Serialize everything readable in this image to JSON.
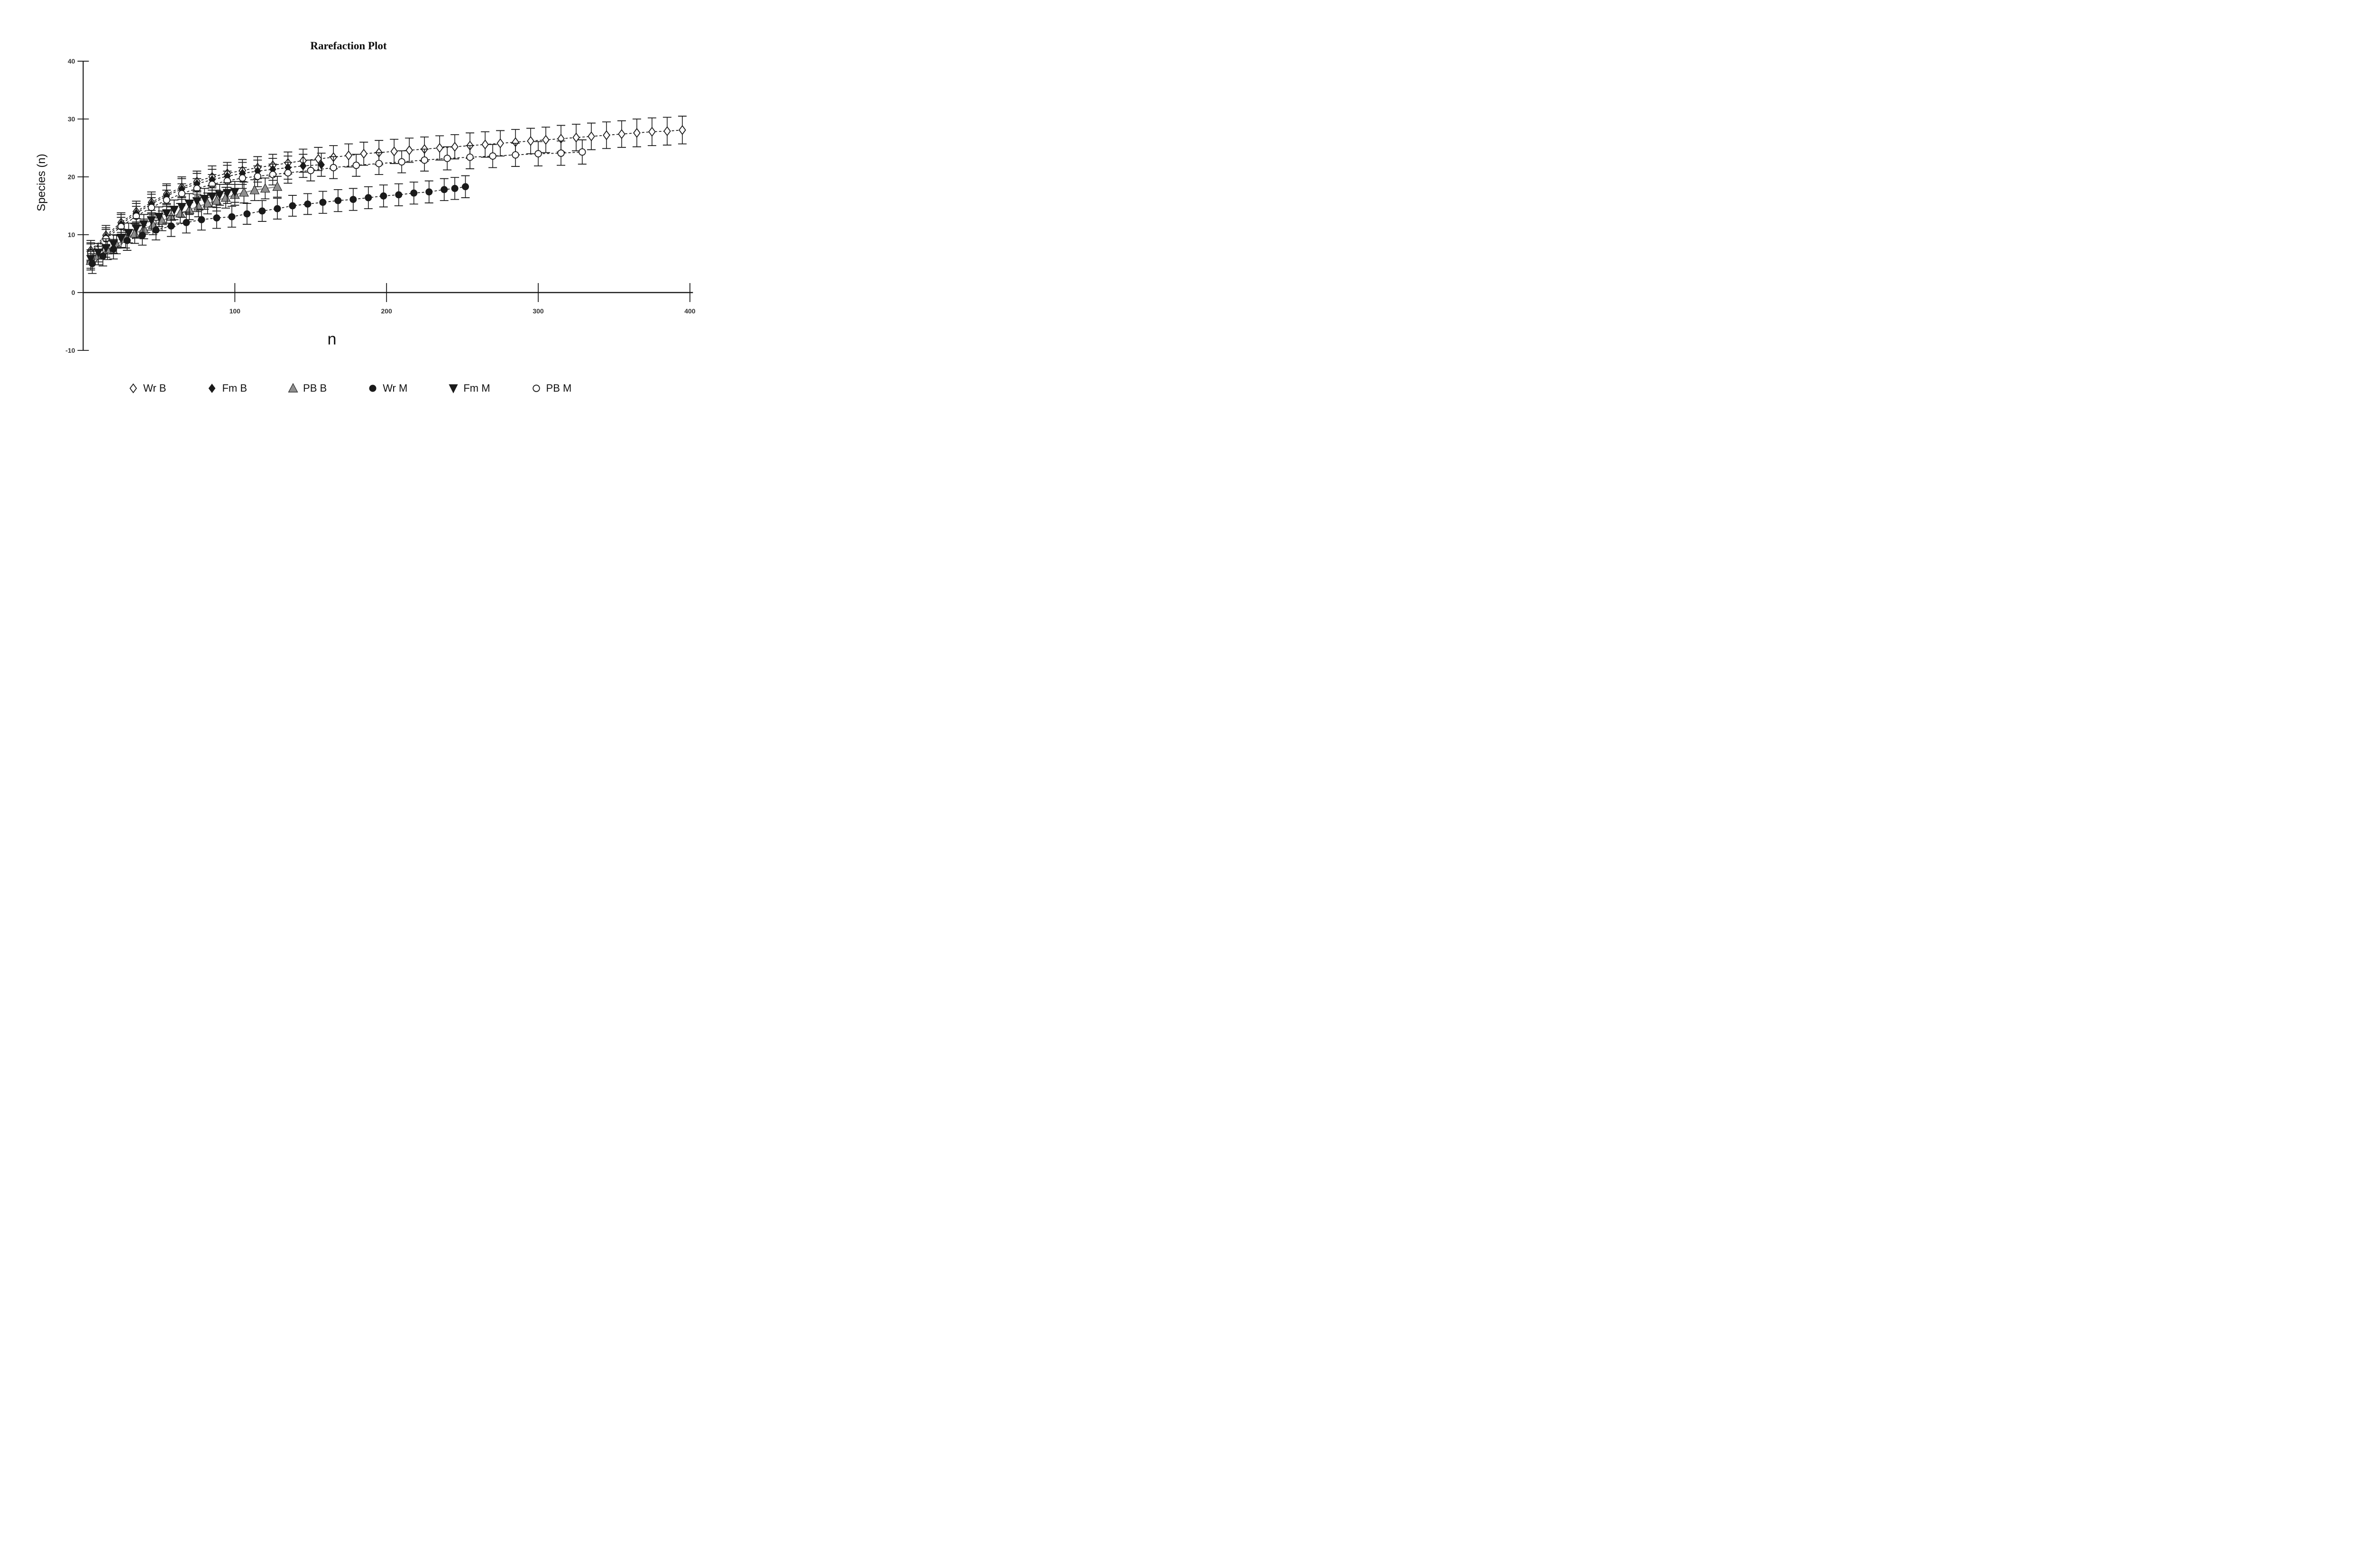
{
  "page": {
    "background": "#ffffff"
  },
  "chart_data": {
    "type": "line",
    "title": "Rarefaction Plot",
    "xlabel": "n",
    "ylabel": "Species (n)",
    "xlim": [
      0,
      405
    ],
    "ylim": [
      -10,
      40
    ],
    "x_ticks": [
      100,
      200,
      300,
      400
    ],
    "y_ticks": [
      40,
      30,
      20,
      10,
      0,
      -10
    ],
    "grid": false,
    "error_bars": true,
    "legend_position": "bottom",
    "colors": {
      "black": "#1a1a1a",
      "gray_fill": "#8f8f8f",
      "gray_line": "#999999",
      "white": "#ffffff"
    },
    "series": [
      {
        "name": "Wr B",
        "marker": "open-diamond",
        "line": "dashed",
        "color": "#1a1a1a",
        "points": [
          [
            5,
            7.3,
            1.7
          ],
          [
            15,
            9.9,
            1.7
          ],
          [
            25,
            12.1,
            1.7
          ],
          [
            35,
            14.0,
            1.8
          ],
          [
            45,
            15.6,
            1.8
          ],
          [
            55,
            17.0,
            1.8
          ],
          [
            65,
            18.2,
            1.8
          ],
          [
            75,
            19.2,
            1.8
          ],
          [
            85,
            20.0,
            1.9
          ],
          [
            95,
            20.6,
            1.9
          ],
          [
            105,
            21.1,
            1.9
          ],
          [
            115,
            21.6,
            1.9
          ],
          [
            125,
            22.0,
            1.9
          ],
          [
            135,
            22.4,
            1.9
          ],
          [
            145,
            22.8,
            2.0
          ],
          [
            155,
            23.1,
            2.0
          ],
          [
            165,
            23.4,
            2.0
          ],
          [
            175,
            23.7,
            2.0
          ],
          [
            185,
            24.0,
            2.0
          ],
          [
            195,
            24.2,
            2.1
          ],
          [
            205,
            24.4,
            2.1
          ],
          [
            215,
            24.6,
            2.1
          ],
          [
            225,
            24.8,
            2.1
          ],
          [
            235,
            25.0,
            2.1
          ],
          [
            245,
            25.2,
            2.1
          ],
          [
            255,
            25.4,
            2.2
          ],
          [
            265,
            25.6,
            2.2
          ],
          [
            275,
            25.8,
            2.2
          ],
          [
            285,
            26.0,
            2.2
          ],
          [
            295,
            26.2,
            2.2
          ],
          [
            305,
            26.4,
            2.2
          ],
          [
            315,
            26.6,
            2.3
          ],
          [
            325,
            26.8,
            2.3
          ],
          [
            335,
            27.0,
            2.3
          ],
          [
            345,
            27.2,
            2.3
          ],
          [
            355,
            27.4,
            2.3
          ],
          [
            365,
            27.6,
            2.4
          ],
          [
            375,
            27.8,
            2.4
          ],
          [
            385,
            27.9,
            2.4
          ],
          [
            395,
            28.1,
            2.4
          ]
        ]
      },
      {
        "name": "Fm B",
        "marker": "filled-diamond",
        "line": "dashed",
        "color": "#1a1a1a",
        "points": [
          [
            5,
            7.0,
            1.6
          ],
          [
            15,
            9.6,
            1.6
          ],
          [
            25,
            11.8,
            1.7
          ],
          [
            35,
            13.7,
            1.7
          ],
          [
            45,
            15.3,
            1.7
          ],
          [
            55,
            16.7,
            1.8
          ],
          [
            65,
            17.9,
            1.8
          ],
          [
            75,
            18.8,
            1.8
          ],
          [
            85,
            19.5,
            1.8
          ],
          [
            95,
            20.1,
            1.9
          ],
          [
            105,
            20.6,
            1.9
          ],
          [
            115,
            21.0,
            1.9
          ],
          [
            125,
            21.3,
            1.9
          ],
          [
            135,
            21.6,
            2.0
          ],
          [
            145,
            21.9,
            2.0
          ],
          [
            157,
            22.1,
            2.0
          ]
        ]
      },
      {
        "name": "PB M",
        "marker": "open-circle",
        "line": "dashed",
        "color": "#1a1a1a",
        "points": [
          [
            5,
            6.8,
            1.6
          ],
          [
            15,
            9.3,
            1.6
          ],
          [
            25,
            11.4,
            1.6
          ],
          [
            35,
            13.2,
            1.7
          ],
          [
            45,
            14.7,
            1.7
          ],
          [
            55,
            16.0,
            1.7
          ],
          [
            65,
            17.1,
            1.7
          ],
          [
            75,
            18.0,
            1.7
          ],
          [
            85,
            18.7,
            1.7
          ],
          [
            95,
            19.3,
            1.7
          ],
          [
            105,
            19.8,
            1.8
          ],
          [
            115,
            20.1,
            1.8
          ],
          [
            125,
            20.4,
            1.8
          ],
          [
            135,
            20.7,
            1.8
          ],
          [
            150,
            21.1,
            1.8
          ],
          [
            165,
            21.6,
            1.9
          ],
          [
            180,
            22.0,
            1.9
          ],
          [
            195,
            22.3,
            1.9
          ],
          [
            210,
            22.6,
            1.9
          ],
          [
            225,
            22.9,
            1.9
          ],
          [
            240,
            23.2,
            2.0
          ],
          [
            255,
            23.4,
            2.0
          ],
          [
            270,
            23.6,
            2.0
          ],
          [
            285,
            23.8,
            2.0
          ],
          [
            300,
            24.0,
            2.1
          ],
          [
            315,
            24.1,
            2.1
          ],
          [
            329,
            24.3,
            2.1
          ]
        ]
      },
      {
        "name": "PB B",
        "marker": "gray-triangle-up",
        "line": "solid-gray",
        "color": "#999999",
        "points": [
          [
            5,
            5.5,
            1.6
          ],
          [
            10,
            6.4,
            1.6
          ],
          [
            16,
            7.3,
            1.6
          ],
          [
            22,
            8.3,
            1.6
          ],
          [
            28,
            9.3,
            1.6
          ],
          [
            34,
            10.2,
            1.7
          ],
          [
            40,
            11.0,
            1.7
          ],
          [
            46,
            11.7,
            1.7
          ],
          [
            52,
            12.4,
            1.7
          ],
          [
            58,
            13.1,
            1.7
          ],
          [
            64,
            13.7,
            1.7
          ],
          [
            70,
            14.3,
            1.7
          ],
          [
            76,
            14.9,
            1.8
          ],
          [
            82,
            15.4,
            1.8
          ],
          [
            88,
            15.9,
            1.8
          ],
          [
            94,
            16.4,
            1.8
          ],
          [
            100,
            16.9,
            1.8
          ],
          [
            106,
            17.3,
            1.8
          ],
          [
            113,
            17.7,
            1.8
          ],
          [
            120,
            18.0,
            1.8
          ],
          [
            128,
            18.3,
            1.8
          ]
        ]
      },
      {
        "name": "Fm M",
        "marker": "filled-triangle-down",
        "line": "dashed",
        "color": "#1a1a1a",
        "points": [
          [
            5,
            5.8,
            1.6
          ],
          [
            10,
            6.9,
            1.6
          ],
          [
            15,
            7.7,
            1.6
          ],
          [
            20,
            8.4,
            1.6
          ],
          [
            25,
            9.4,
            1.6
          ],
          [
            30,
            10.3,
            1.7
          ],
          [
            35,
            11.1,
            1.7
          ],
          [
            40,
            11.8,
            1.7
          ],
          [
            45,
            12.5,
            1.7
          ],
          [
            50,
            13.1,
            1.7
          ],
          [
            55,
            13.7,
            1.7
          ],
          [
            60,
            14.3,
            1.7
          ],
          [
            65,
            14.8,
            1.8
          ],
          [
            70,
            15.3,
            1.8
          ],
          [
            75,
            15.8,
            1.8
          ],
          [
            80,
            16.2,
            1.8
          ],
          [
            85,
            16.6,
            1.8
          ],
          [
            90,
            16.9,
            1.8
          ],
          [
            95,
            17.2,
            1.8
          ],
          [
            100,
            17.4,
            1.8
          ]
        ]
      },
      {
        "name": "Wr M",
        "marker": "filled-circle",
        "line": "dashed",
        "color": "#1a1a1a",
        "points": [
          [
            6,
            5.0,
            1.7
          ],
          [
            13,
            6.3,
            1.7
          ],
          [
            20,
            7.5,
            1.7
          ],
          [
            29,
            9.0,
            1.7
          ],
          [
            39,
            9.9,
            1.7
          ],
          [
            48,
            10.8,
            1.7
          ],
          [
            58,
            11.5,
            1.8
          ],
          [
            68,
            12.1,
            1.8
          ],
          [
            78,
            12.6,
            1.8
          ],
          [
            88,
            12.9,
            1.8
          ],
          [
            98,
            13.1,
            1.8
          ],
          [
            108,
            13.6,
            1.8
          ],
          [
            118,
            14.1,
            1.8
          ],
          [
            128,
            14.5,
            1.8
          ],
          [
            138,
            15.0,
            1.8
          ],
          [
            148,
            15.3,
            1.8
          ],
          [
            158,
            15.6,
            1.9
          ],
          [
            168,
            15.9,
            1.9
          ],
          [
            178,
            16.1,
            1.9
          ],
          [
            188,
            16.4,
            1.9
          ],
          [
            198,
            16.7,
            1.9
          ],
          [
            208,
            16.9,
            1.9
          ],
          [
            218,
            17.2,
            1.9
          ],
          [
            228,
            17.4,
            1.9
          ],
          [
            238,
            17.8,
            1.9
          ],
          [
            245,
            18.0,
            1.9
          ],
          [
            252,
            18.3,
            1.9
          ]
        ]
      }
    ],
    "legend_order": [
      "Wr B",
      "Fm B",
      "PB B",
      "Wr M",
      "Fm M",
      "PB M"
    ]
  }
}
